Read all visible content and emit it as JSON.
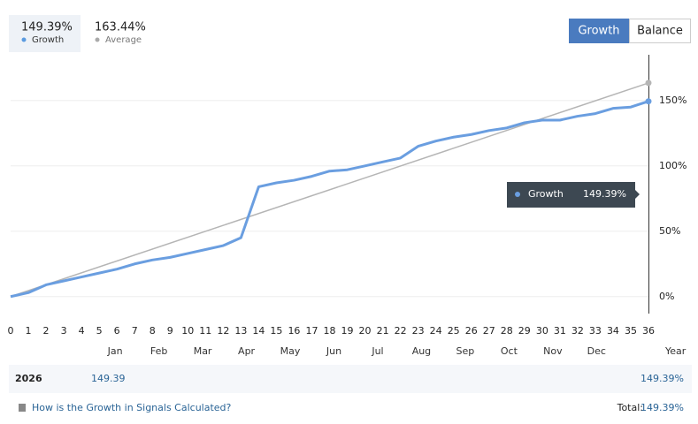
{
  "header": {
    "stats": [
      {
        "value": "149.39%",
        "name": "Growth",
        "color": "#5b9be0"
      },
      {
        "value": "163.44%",
        "name": "Average",
        "color": "#aaaaaa"
      }
    ],
    "buttons": [
      "Growth",
      "Balance"
    ]
  },
  "chart_data": {
    "type": "line",
    "x": [
      0,
      1,
      2,
      3,
      4,
      5,
      6,
      7,
      8,
      9,
      10,
      11,
      12,
      13,
      14,
      15,
      16,
      17,
      18,
      19,
      20,
      21,
      22,
      23,
      24,
      25,
      26,
      27,
      28,
      29,
      30,
      31,
      32,
      33,
      34,
      35,
      36
    ],
    "series": [
      {
        "name": "Growth",
        "color": "#6a9ee0",
        "x": [
          0,
          1,
          2,
          3,
          4,
          5,
          6,
          7,
          8,
          9,
          10,
          11,
          12,
          13,
          14,
          15,
          16,
          17,
          18,
          19,
          20,
          21,
          22,
          23,
          24,
          25,
          26,
          27,
          28,
          29,
          30,
          31,
          32,
          33,
          34,
          35,
          36
        ],
        "values": [
          0,
          3,
          9,
          12,
          15,
          18,
          21,
          25,
          28,
          30,
          33,
          36,
          39,
          45,
          84,
          87,
          89,
          92,
          96,
          97,
          100,
          103,
          106,
          115,
          119,
          122,
          124,
          127,
          129,
          133,
          135,
          135,
          138,
          140,
          144,
          145,
          149.39
        ]
      },
      {
        "name": "Average",
        "color": "#b5b5b5",
        "x": [
          0,
          36
        ],
        "values": [
          0,
          163.44
        ]
      }
    ],
    "xlim": [
      0,
      36
    ],
    "ylim": [
      -13,
      185
    ],
    "xticks": [
      0,
      1,
      2,
      3,
      4,
      5,
      6,
      7,
      8,
      9,
      10,
      11,
      12,
      13,
      14,
      15,
      16,
      17,
      18,
      19,
      20,
      21,
      22,
      23,
      24,
      25,
      26,
      27,
      28,
      29,
      30,
      31,
      32,
      33,
      34,
      35,
      36
    ],
    "yticks": [
      {
        "value": 0,
        "label": "0%"
      },
      {
        "value": 50,
        "label": "50%"
      },
      {
        "value": 100,
        "label": "100%"
      },
      {
        "value": 150,
        "label": "150%"
      }
    ],
    "grid": true,
    "tooltip": {
      "name": "Growth",
      "value": "149.39%"
    },
    "months": [
      "Jan",
      "Feb",
      "Mar",
      "Apr",
      "May",
      "Jun",
      "Jul",
      "Aug",
      "Sep",
      "Oct",
      "Nov",
      "Dec"
    ]
  },
  "table": {
    "year_label": "Year",
    "rows": [
      [
        "2026",
        "149.39",
        "149.39%"
      ]
    ]
  },
  "footer": {
    "link": "How is the Growth in Signals Calculated?",
    "total_label": "Total:",
    "total": "149.39%"
  }
}
